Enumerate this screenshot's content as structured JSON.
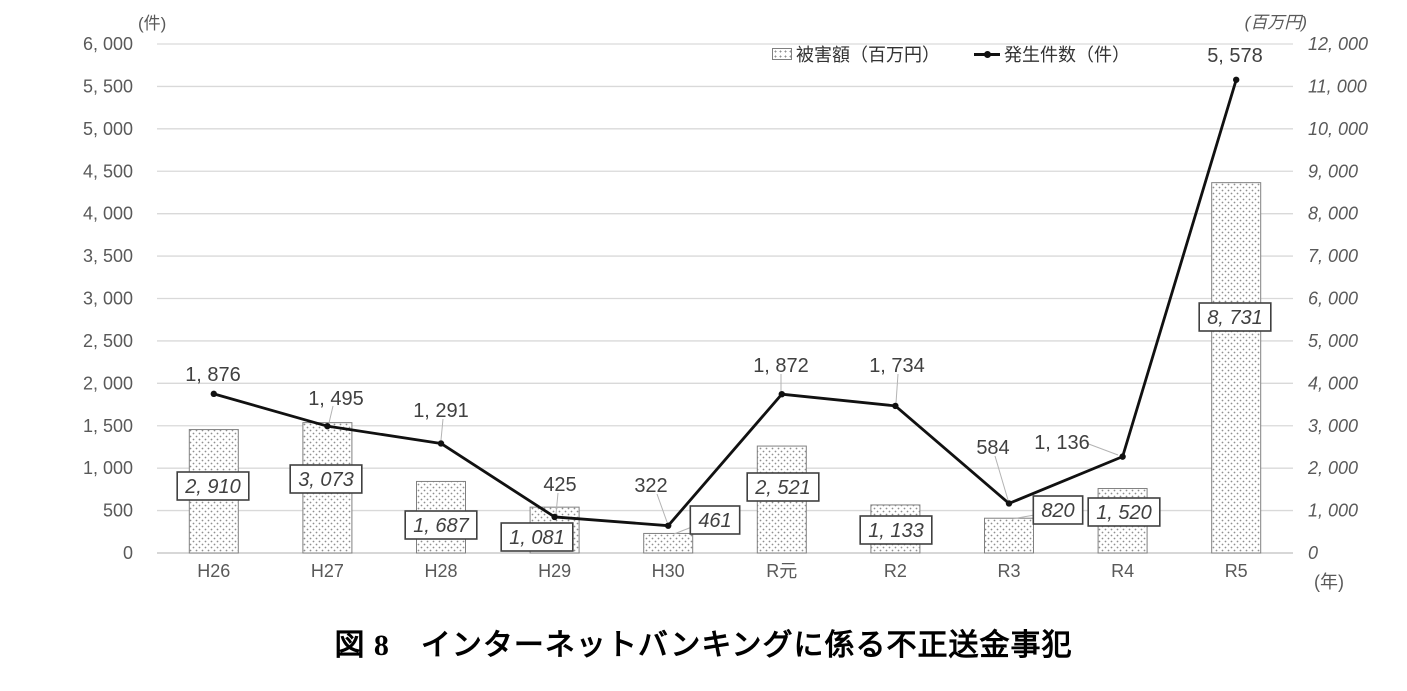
{
  "title": "図 8　インターネットバンキングに係る不正送金事犯",
  "legend": {
    "damage_label": "被害額（百万円）",
    "cases_label": "発生件数（件）"
  },
  "chart_data": {
    "type": "bar+line combo",
    "categories": [
      "H26",
      "H27",
      "H28",
      "H29",
      "H30",
      "R元",
      "R2",
      "R3",
      "R4",
      "R5"
    ],
    "series": [
      {
        "name": "被害額（百万円）",
        "type": "bar",
        "axis": "right",
        "values": [
          2910,
          3073,
          1687,
          1081,
          461,
          2521,
          1133,
          820,
          1520,
          8731
        ],
        "labels": [
          "2, 910",
          "3, 073",
          "1, 687",
          "1, 081",
          "461",
          "2, 521",
          "1, 133",
          "820",
          "1, 520",
          "8, 731"
        ]
      },
      {
        "name": "発生件数（件）",
        "type": "line",
        "axis": "left",
        "values": [
          1876,
          1495,
          1291,
          425,
          322,
          1872,
          1734,
          584,
          1136,
          5578
        ],
        "labels": [
          "1, 876",
          "1, 495",
          "1, 291",
          "425",
          "322",
          "1, 872",
          "1, 734",
          "584",
          "1, 136",
          "5, 578"
        ]
      }
    ],
    "left_axis": {
      "unit": "(件)",
      "min": 0,
      "max": 6000,
      "step": 500,
      "tick_labels": [
        "6, 000",
        "5, 500",
        "5, 000",
        "4, 500",
        "4, 000",
        "3, 500",
        "3, 000",
        "2, 500",
        "2, 000",
        "1, 500",
        "1, 000",
        "500",
        "0"
      ]
    },
    "right_axis": {
      "unit": "(百万円)",
      "min": 0,
      "max": 12000,
      "step": 1000,
      "tick_labels": [
        "12, 000",
        "11, 000",
        "10, 000",
        "9, 000",
        "8, 000",
        "7, 000",
        "6, 000",
        "5, 000",
        "4, 000",
        "3, 000",
        "2, 000",
        "1, 000",
        "0"
      ]
    },
    "x_axis_unit": "(年)",
    "highlight_index": 9,
    "legend_position": "top",
    "grid": true,
    "colors": {
      "line": "#111111",
      "highlight": "#ff0000",
      "grid": "#d9d9d9",
      "axis_line": "#bfbfbf",
      "bar_border": "#808080",
      "bar_dot": "#8f8f8f",
      "label_text": "#404040",
      "tick_text": "#595959"
    }
  }
}
